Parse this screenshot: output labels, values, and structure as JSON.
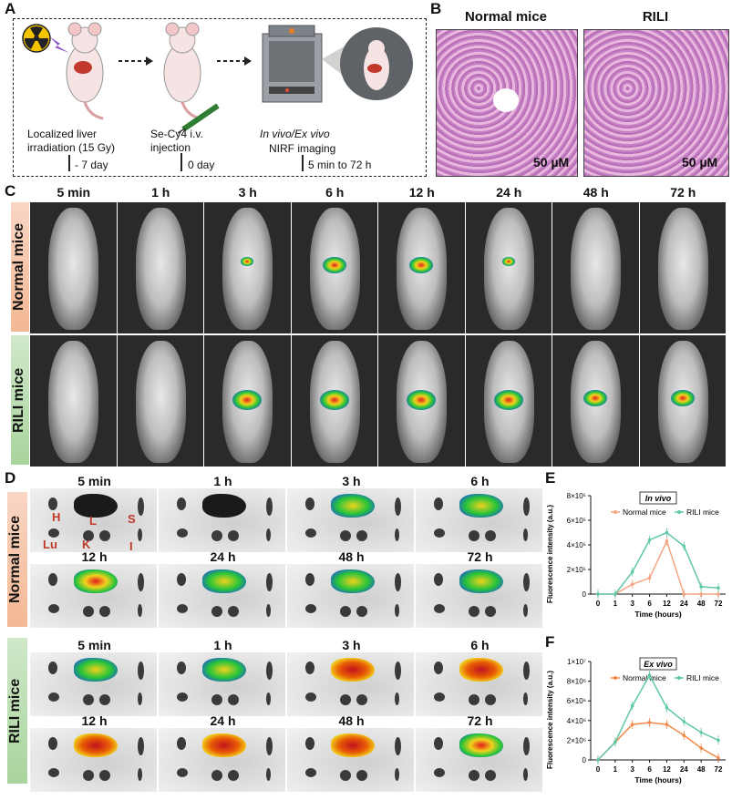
{
  "panels": {
    "A": "A",
    "B": "B",
    "C": "C",
    "D": "D",
    "E": "E",
    "F": "F"
  },
  "panel_a": {
    "step1": "Localized liver irradiation (15 Gy)",
    "step1_time": "- 7 day",
    "step2": "Se-Cy4 i.v. injection",
    "step2_time": "0 day",
    "step3_title": "In vivo/Ex vivo",
    "step3_sub": "NIRF imaging",
    "step3_time": "5 min to 72 h"
  },
  "panel_b": {
    "col1": "Normal mice",
    "col2": "RILI",
    "scale1": "50 µM",
    "scale2": "50 µM"
  },
  "panel_c": {
    "times": [
      "5 min",
      "1 h",
      "3 h",
      "6 h",
      "12 h",
      "24 h",
      "48 h",
      "72 h"
    ],
    "row1": "Normal mice",
    "row2": "RILI mice"
  },
  "panel_d": {
    "row1": "Normal mice",
    "row2": "RILI mice",
    "times_r1": [
      "5 min",
      "1 h",
      "3 h",
      "6 h"
    ],
    "times_r2": [
      "12 h",
      "24 h",
      "48 h",
      "72 h"
    ],
    "organs": {
      "H": "H",
      "L": "L",
      "S": "S",
      "Lu": "Lu",
      "K": "K",
      "I": "I"
    }
  },
  "chart_data": [
    {
      "type": "line",
      "title": "In vivo",
      "xlabel": "Time (hours)",
      "ylabel": "Fluorescence intensity (a.u.)",
      "categories": [
        "0",
        "1",
        "3",
        "6",
        "12",
        "24",
        "48",
        "72"
      ],
      "yticks": [
        "0",
        "2×10⁵",
        "4×10⁵",
        "6×10⁵",
        "8×10⁵"
      ],
      "ylim": [
        0,
        800000
      ],
      "series": [
        {
          "name": "Normal mice",
          "color": "#f4a582",
          "values": [
            0,
            0,
            80000,
            130000,
            430000,
            0,
            0,
            0
          ]
        },
        {
          "name": "RILI mice",
          "color": "#5fc8a7",
          "values": [
            0,
            0,
            180000,
            440000,
            500000,
            390000,
            60000,
            50000
          ]
        }
      ]
    },
    {
      "type": "line",
      "title": "Ex vivo",
      "xlabel": "Time (hours)",
      "ylabel": "Fluorescence intensity (a.u.)",
      "categories": [
        "0",
        "1",
        "3",
        "6",
        "12",
        "24",
        "48",
        "72"
      ],
      "yticks": [
        "0",
        "2×10⁶",
        "4×10⁶",
        "6×10⁶",
        "8×10⁶",
        "1×10⁷"
      ],
      "ylim": [
        0,
        10000000
      ],
      "series": [
        {
          "name": "Normal mice",
          "color": "#f08a4b",
          "values": [
            0,
            1800000,
            3600000,
            3800000,
            3600000,
            2500000,
            1200000,
            200000
          ]
        },
        {
          "name": "RILI mice",
          "color": "#5fc8a7",
          "values": [
            0,
            1800000,
            5500000,
            8600000,
            5300000,
            3900000,
            2800000,
            2000000
          ]
        }
      ]
    }
  ]
}
